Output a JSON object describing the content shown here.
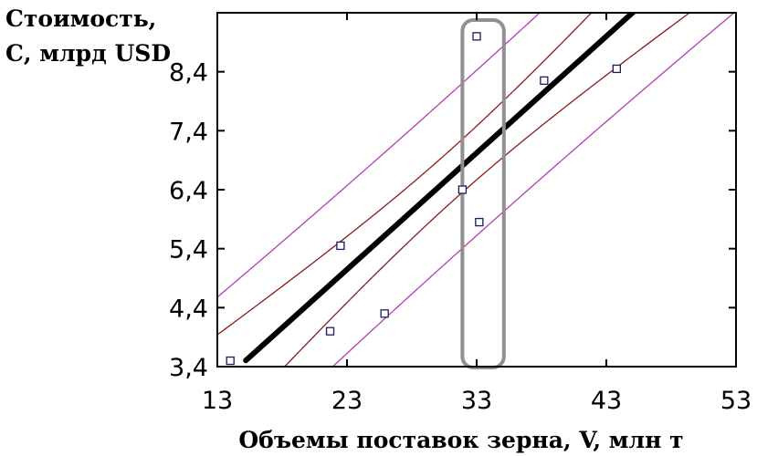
{
  "chart_data": {
    "type": "scatter",
    "title": "",
    "ylabel": [
      "Стоимость,",
      "С, млрд USD"
    ],
    "xlabel": "Объемы поставок зерна, V, млн т",
    "xlim": [
      13,
      53
    ],
    "ylim": [
      3.4,
      9.4
    ],
    "x_ticks": [
      13,
      23,
      33,
      43,
      53
    ],
    "x_tick_labels": [
      "13",
      "23",
      "33",
      "43",
      "53"
    ],
    "y_ticks": [
      3.4,
      4.4,
      5.4,
      6.4,
      7.4,
      8.4
    ],
    "y_tick_labels": [
      "3,4",
      "4,4",
      "5,4",
      "6,4",
      "7,4",
      "8,4"
    ],
    "points": [
      {
        "x": 14.0,
        "y": 3.5
      },
      {
        "x": 21.7,
        "y": 4.0
      },
      {
        "x": 22.5,
        "y": 5.45
      },
      {
        "x": 25.9,
        "y": 4.3
      },
      {
        "x": 31.9,
        "y": 6.4
      },
      {
        "x": 33.2,
        "y": 5.85
      },
      {
        "x": 33.0,
        "y": 9.0
      },
      {
        "x": 38.2,
        "y": 8.25
      },
      {
        "x": 43.8,
        "y": 8.45
      }
    ],
    "regression": {
      "x0": 15.2,
      "x1": 46.4,
      "slope": 0.1977,
      "intercept": 0.5
    },
    "confidence_band": {
      "color": "#8b1a1a",
      "xc": 31.2,
      "h0": 0.45,
      "k": 0.00167
    },
    "prediction_band": {
      "color": "#b03fb0",
      "xc": 31.2,
      "h0": 1.4,
      "k": 0.00094
    },
    "highlight": {
      "x_min": 31.9,
      "x_max": 35.1,
      "y_min": 3.4,
      "y_max": 9.4,
      "color": "#909090"
    },
    "grid": false,
    "legend": "none"
  }
}
